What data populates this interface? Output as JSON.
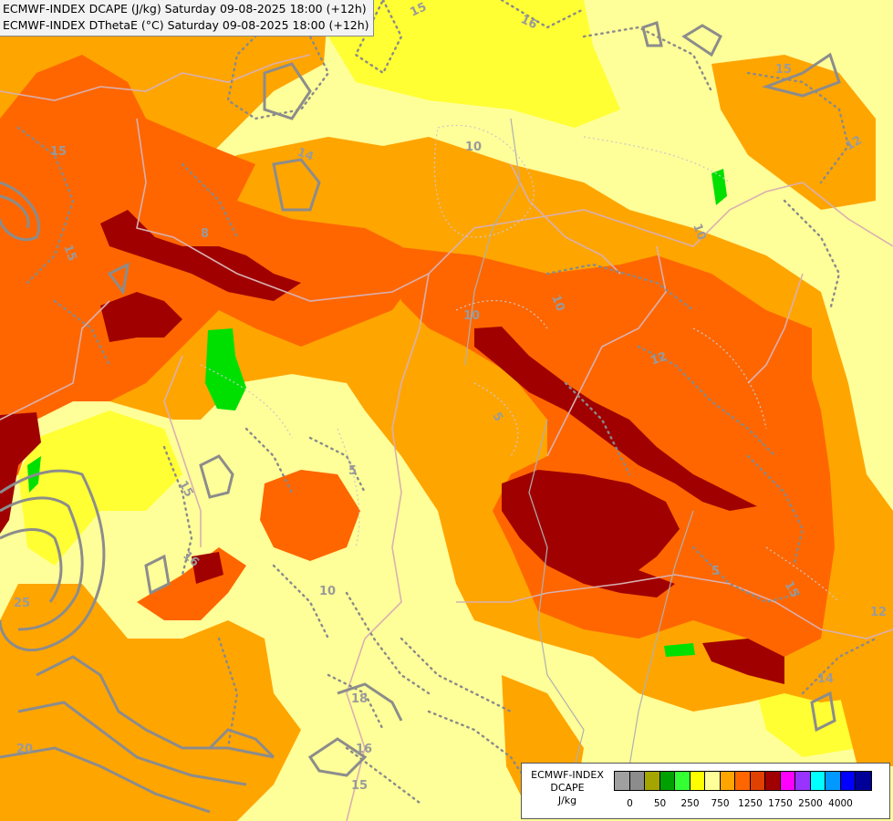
{
  "title": {
    "line1": "ECMWF-INDEX DCAPE (J/kg) Saturday 09-08-2025 18:00 (+12h)",
    "line2": "ECMWF-INDEX DThetaE (°C) Saturday 09-08-2025 18:00 (+12h)"
  },
  "legend": {
    "line1": "ECMWF-INDEX",
    "line2": "DCAPE",
    "line3": "J/kg",
    "colors": [
      "#a0a0a0",
      "#8c8c8c",
      "#a5a500",
      "#00a000",
      "#33ff33",
      "#ffff00",
      "#ffff99",
      "#ffa500",
      "#ff6600",
      "#e04000",
      "#a00000",
      "#ff00ff",
      "#9933ff",
      "#00ffff",
      "#0099ff",
      "#0000ff",
      "#000099"
    ],
    "ticks": [
      "0",
      "50",
      "250",
      "750",
      "1250",
      "1750",
      "2500",
      "4000"
    ]
  },
  "contour_labels": [
    "15",
    "16",
    "15",
    "14",
    "12",
    "10",
    "15",
    "15",
    "10",
    "12",
    "10",
    "5",
    "5",
    "15",
    "15",
    "16",
    "25",
    "10",
    "18",
    "20",
    "16",
    "15",
    "14",
    "12",
    "10",
    "5",
    "8"
  ]
}
